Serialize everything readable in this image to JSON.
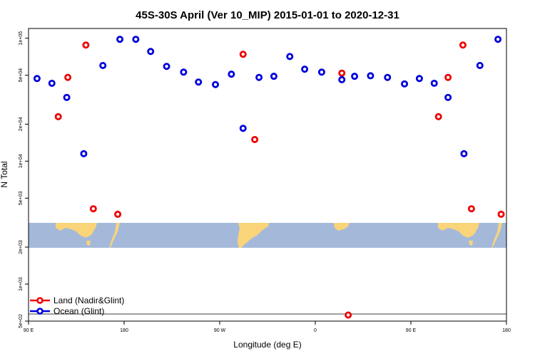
{
  "chart_data": {
    "type": "scatter",
    "title": "45S-30S April (Ver 10_MIP)   2015-01-01 to 2020-12-31",
    "xlabel": "Longitude (deg E)",
    "ylabel": "N Total",
    "xlim": [
      90,
      540
    ],
    "ylim_log": [
      500,
      120000
    ],
    "y_scale": "log",
    "x_ticks": [
      {
        "value": 90,
        "label": "90 E"
      },
      {
        "value": 180,
        "label": "180"
      },
      {
        "value": 270,
        "label": "90 W"
      },
      {
        "value": 360,
        "label": "0"
      },
      {
        "value": 450,
        "label": "90 E"
      },
      {
        "value": 540,
        "label": "180"
      }
    ],
    "y_ticks": [
      {
        "value": 500,
        "label": "5e+02"
      },
      {
        "value": 1000,
        "label": "1e+03"
      },
      {
        "value": 2000,
        "label": "2e+03"
      },
      {
        "value": 5000,
        "label": "5e+03"
      },
      {
        "value": 10000,
        "label": "1e+04"
      },
      {
        "value": 20000,
        "label": "2e+04"
      },
      {
        "value": 50000,
        "label": "5e+04"
      },
      {
        "value": 100000,
        "label": "1e+05"
      }
    ],
    "map_strip_lat_range": "45S-30S",
    "legend_position": "bottom-left",
    "series": [
      {
        "name": "Land (Nadir&Glint)",
        "color": "#ee0000",
        "points": [
          {
            "x": 118,
            "y": 23000
          },
          {
            "x": 127,
            "y": 48000
          },
          {
            "x": 144,
            "y": 88000
          },
          {
            "x": 151,
            "y": 4100
          },
          {
            "x": 174,
            "y": 3700
          },
          {
            "x": 292,
            "y": 74000
          },
          {
            "x": 303,
            "y": 15000
          },
          {
            "x": 385,
            "y": 52000
          },
          {
            "x": 391,
            "y": 560
          },
          {
            "x": 476,
            "y": 23000
          },
          {
            "x": 485,
            "y": 48000
          },
          {
            "x": 499,
            "y": 88000
          },
          {
            "x": 507,
            "y": 4100
          },
          {
            "x": 535,
            "y": 3700
          }
        ]
      },
      {
        "name": "Ocean (Glint)",
        "color": "#0000dd",
        "points": [
          {
            "x": 98,
            "y": 47000
          },
          {
            "x": 112,
            "y": 43000
          },
          {
            "x": 126,
            "y": 33000
          },
          {
            "x": 142,
            "y": 11500
          },
          {
            "x": 160,
            "y": 60000
          },
          {
            "x": 176,
            "y": 98000
          },
          {
            "x": 191,
            "y": 98000
          },
          {
            "x": 205,
            "y": 78000
          },
          {
            "x": 220,
            "y": 59000
          },
          {
            "x": 236,
            "y": 53000
          },
          {
            "x": 250,
            "y": 44000
          },
          {
            "x": 266,
            "y": 42000
          },
          {
            "x": 281,
            "y": 51000
          },
          {
            "x": 292,
            "y": 18500
          },
          {
            "x": 307,
            "y": 48000
          },
          {
            "x": 321,
            "y": 49000
          },
          {
            "x": 336,
            "y": 71000
          },
          {
            "x": 350,
            "y": 56000
          },
          {
            "x": 366,
            "y": 53000
          },
          {
            "x": 385,
            "y": 46000
          },
          {
            "x": 397,
            "y": 49000
          },
          {
            "x": 412,
            "y": 49500
          },
          {
            "x": 428,
            "y": 48000
          },
          {
            "x": 444,
            "y": 42500
          },
          {
            "x": 458,
            "y": 47000
          },
          {
            "x": 472,
            "y": 43000
          },
          {
            "x": 485,
            "y": 33000
          },
          {
            "x": 500,
            "y": 11500
          },
          {
            "x": 515,
            "y": 60000
          },
          {
            "x": 532,
            "y": 98000
          }
        ]
      }
    ]
  }
}
